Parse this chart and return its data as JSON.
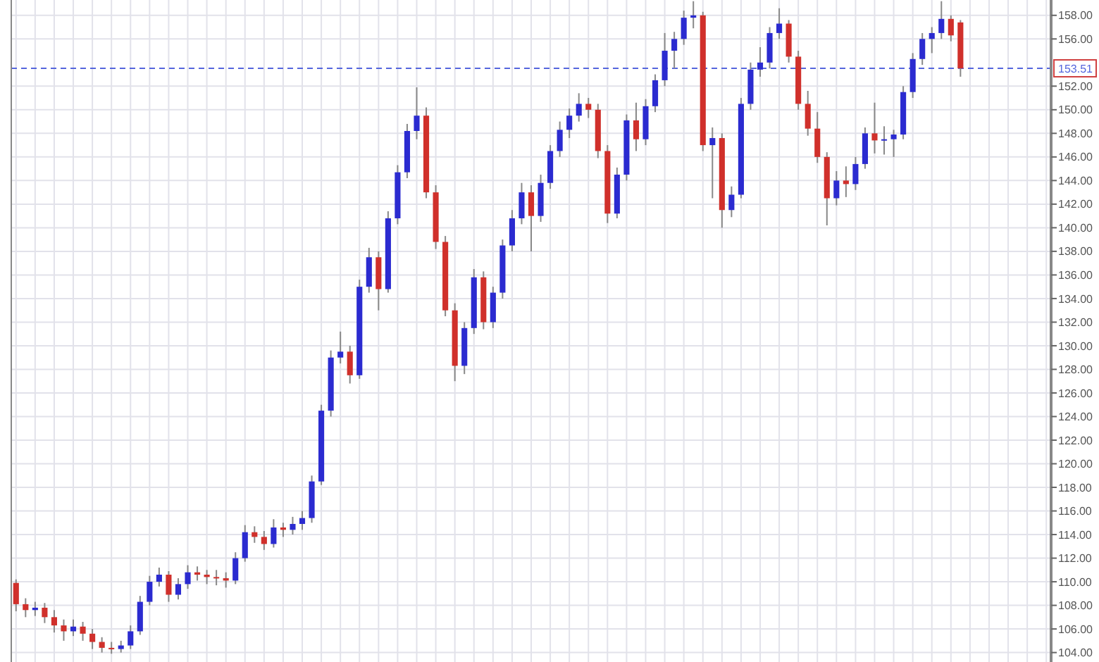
{
  "chart_data": {
    "type": "candlestick",
    "categories": [
      null,
      null,
      null,
      null,
      null,
      null,
      null,
      null,
      null,
      null,
      null,
      null,
      null,
      null,
      null,
      null,
      null,
      null,
      null,
      null,
      null,
      null,
      null,
      null,
      null,
      null,
      null,
      null,
      null,
      null,
      null,
      null,
      null,
      null,
      null,
      null,
      null,
      null,
      null,
      null,
      null,
      null,
      null,
      null,
      null,
      null,
      null,
      null,
      null,
      null,
      null,
      null,
      null,
      null,
      null,
      null,
      null,
      null,
      null,
      null,
      null,
      null,
      null,
      null,
      null,
      null,
      null,
      null,
      null,
      null,
      null,
      null,
      null,
      null,
      null,
      null,
      null,
      null,
      null,
      null,
      null,
      null,
      null,
      null,
      null,
      null,
      null,
      null,
      null,
      null,
      null,
      null,
      null,
      null,
      null,
      null,
      null,
      null,
      null,
      null,
      null,
      null,
      null,
      null,
      null,
      null,
      null,
      null,
      null
    ],
    "ohlc": [
      [
        109.9,
        110.2,
        107.5,
        108.1
      ],
      [
        108.1,
        108.6,
        107.0,
        107.6
      ],
      [
        107.6,
        108.3,
        107.1,
        107.8
      ],
      [
        107.8,
        108.2,
        106.5,
        107.0
      ],
      [
        107.0,
        107.6,
        105.7,
        106.3
      ],
      [
        106.3,
        106.8,
        105.0,
        105.8
      ],
      [
        105.8,
        106.8,
        105.4,
        106.2
      ],
      [
        106.2,
        106.6,
        105.0,
        105.6
      ],
      [
        105.6,
        106.0,
        104.3,
        104.9
      ],
      [
        104.9,
        105.3,
        104.0,
        104.4
      ],
      [
        104.4,
        104.9,
        103.9,
        104.3
      ],
      [
        104.3,
        105.0,
        104.0,
        104.6
      ],
      [
        104.6,
        106.3,
        104.3,
        105.8
      ],
      [
        105.8,
        108.8,
        105.5,
        108.3
      ],
      [
        108.3,
        110.5,
        108.0,
        110.0
      ],
      [
        110.0,
        111.2,
        109.6,
        110.6
      ],
      [
        110.6,
        110.9,
        108.3,
        108.9
      ],
      [
        108.9,
        110.3,
        108.5,
        109.8
      ],
      [
        109.8,
        111.4,
        109.4,
        110.8
      ],
      [
        110.8,
        111.3,
        110.1,
        110.6
      ],
      [
        110.6,
        111.0,
        109.8,
        110.4
      ],
      [
        110.4,
        111.0,
        109.7,
        110.3
      ],
      [
        110.3,
        110.8,
        109.5,
        110.1
      ],
      [
        110.1,
        112.5,
        109.8,
        112.0
      ],
      [
        112.0,
        114.8,
        111.7,
        114.2
      ],
      [
        114.2,
        114.7,
        113.3,
        113.8
      ],
      [
        113.8,
        114.3,
        112.7,
        113.2
      ],
      [
        113.2,
        115.3,
        112.9,
        114.6
      ],
      [
        114.6,
        115.0,
        113.8,
        114.4
      ],
      [
        114.4,
        115.5,
        114.0,
        114.9
      ],
      [
        114.9,
        116.0,
        114.4,
        115.4
      ],
      [
        115.4,
        119.0,
        115.0,
        118.5
      ],
      [
        118.5,
        125.0,
        118.2,
        124.5
      ],
      [
        124.5,
        129.6,
        124.0,
        129.0
      ],
      [
        129.0,
        131.2,
        128.5,
        129.5
      ],
      [
        129.5,
        130.0,
        126.8,
        127.5
      ],
      [
        127.5,
        135.6,
        127.2,
        135.0
      ],
      [
        135.0,
        138.3,
        134.5,
        137.5
      ],
      [
        137.5,
        138.0,
        133.0,
        134.8
      ],
      [
        134.8,
        141.4,
        134.5,
        140.8
      ],
      [
        140.8,
        145.3,
        140.3,
        144.7
      ],
      [
        144.7,
        148.8,
        144.2,
        148.2
      ],
      [
        148.2,
        151.9,
        147.5,
        149.5
      ],
      [
        149.5,
        150.2,
        142.5,
        143.0
      ],
      [
        143.0,
        143.6,
        138.2,
        138.8
      ],
      [
        138.8,
        139.3,
        132.5,
        133.0
      ],
      [
        133.0,
        133.6,
        127.0,
        128.3
      ],
      [
        128.3,
        132.0,
        127.6,
        131.5
      ],
      [
        131.5,
        136.5,
        131.0,
        135.8
      ],
      [
        135.8,
        136.3,
        131.4,
        132.0
      ],
      [
        132.0,
        135.0,
        131.5,
        134.5
      ],
      [
        134.5,
        139.0,
        134.0,
        138.5
      ],
      [
        138.5,
        141.5,
        138.0,
        140.8
      ],
      [
        140.8,
        143.8,
        140.3,
        143.0
      ],
      [
        143.0,
        143.6,
        138.0,
        141.0
      ],
      [
        141.0,
        144.5,
        140.5,
        143.8
      ],
      [
        143.8,
        147.0,
        143.3,
        146.5
      ],
      [
        146.5,
        149.0,
        146.0,
        148.3
      ],
      [
        148.3,
        150.1,
        147.6,
        149.5
      ],
      [
        149.5,
        151.4,
        149.0,
        150.5
      ],
      [
        150.5,
        151.0,
        149.3,
        150.0
      ],
      [
        150.0,
        150.5,
        145.9,
        146.5
      ],
      [
        146.5,
        147.0,
        140.4,
        141.2
      ],
      [
        141.2,
        145.1,
        140.8,
        144.5
      ],
      [
        144.5,
        149.6,
        144.0,
        149.1
      ],
      [
        149.1,
        150.6,
        146.5,
        147.5
      ],
      [
        147.5,
        150.9,
        147.0,
        150.3
      ],
      [
        150.3,
        153.0,
        149.8,
        152.5
      ],
      [
        152.5,
        156.5,
        152.0,
        155.0
      ],
      [
        155.0,
        156.6,
        153.5,
        156.0
      ],
      [
        156.0,
        158.4,
        155.5,
        157.8
      ],
      [
        157.8,
        159.2,
        156.9,
        158.0
      ],
      [
        158.0,
        158.3,
        146.5,
        147.0
      ],
      [
        147.0,
        148.5,
        142.5,
        147.6
      ],
      [
        147.6,
        148.0,
        140.0,
        141.5
      ],
      [
        141.5,
        143.5,
        140.9,
        142.8
      ],
      [
        142.8,
        151.0,
        142.5,
        150.5
      ],
      [
        150.5,
        154.0,
        150.0,
        153.4
      ],
      [
        153.4,
        155.3,
        152.8,
        154.0
      ],
      [
        154.0,
        157.0,
        153.5,
        156.5
      ],
      [
        156.5,
        158.6,
        156.0,
        157.3
      ],
      [
        157.3,
        157.6,
        154.0,
        154.5
      ],
      [
        154.5,
        155.0,
        150.0,
        150.5
      ],
      [
        150.5,
        151.6,
        147.8,
        148.4
      ],
      [
        148.4,
        149.8,
        145.5,
        146.0
      ],
      [
        146.0,
        146.4,
        140.2,
        142.5
      ],
      [
        142.5,
        144.8,
        141.9,
        144.0
      ],
      [
        144.0,
        145.2,
        142.6,
        143.7
      ],
      [
        143.7,
        146.0,
        143.2,
        145.4
      ],
      [
        145.4,
        148.5,
        145.0,
        148.0
      ],
      [
        148.0,
        150.6,
        146.3,
        147.4
      ],
      [
        147.4,
        148.6,
        146.2,
        147.5
      ],
      [
        147.5,
        148.3,
        146.0,
        147.9
      ],
      [
        147.9,
        152.0,
        147.5,
        151.5
      ],
      [
        151.5,
        154.8,
        151.0,
        154.3
      ],
      [
        154.3,
        156.5,
        153.8,
        156.0
      ],
      [
        156.0,
        157.0,
        154.8,
        156.5
      ],
      [
        156.5,
        159.2,
        156.0,
        157.7
      ],
      [
        157.7,
        158.0,
        155.8,
        156.3
      ],
      [
        157.4,
        157.6,
        152.8,
        153.5
      ],
      null,
      null,
      null,
      null,
      null,
      null,
      null,
      null,
      null
    ],
    "colors": [
      "#d0302b",
      "#d0302b",
      "#2b2bd0",
      "#d0302b",
      "#d0302b",
      "#d0302b",
      "#2b2bd0",
      "#d0302b",
      "#d0302b",
      "#d0302b",
      "#d0302b",
      "#2b2bd0",
      "#2b2bd0",
      "#2b2bd0",
      "#2b2bd0",
      "#2b2bd0",
      "#d0302b",
      "#2b2bd0",
      "#2b2bd0",
      "#d0302b",
      "#d0302b",
      "#d0302b",
      "#d0302b",
      "#2b2bd0",
      "#2b2bd0",
      "#d0302b",
      "#d0302b",
      "#2b2bd0",
      "#d0302b",
      "#2b2bd0",
      "#2b2bd0",
      "#2b2bd0",
      "#2b2bd0",
      "#2b2bd0",
      "#2b2bd0",
      "#d0302b",
      "#2b2bd0",
      "#2b2bd0",
      "#d0302b",
      "#2b2bd0",
      "#2b2bd0",
      "#2b2bd0",
      "#2b2bd0",
      "#d0302b",
      "#d0302b",
      "#d0302b",
      "#d0302b",
      "#2b2bd0",
      "#2b2bd0",
      "#d0302b",
      "#2b2bd0",
      "#2b2bd0",
      "#2b2bd0",
      "#2b2bd0",
      "#d0302b",
      "#2b2bd0",
      "#2b2bd0",
      "#2b2bd0",
      "#2b2bd0",
      "#2b2bd0",
      "#d0302b",
      "#d0302b",
      "#d0302b",
      "#2b2bd0",
      "#2b2bd0",
      "#d0302b",
      "#2b2bd0",
      "#2b2bd0",
      "#2b2bd0",
      "#2b2bd0",
      "#2b2bd0",
      "#2b2bd0",
      "#d0302b",
      "#2b2bd0",
      "#d0302b",
      "#2b2bd0",
      "#2b2bd0",
      "#2b2bd0",
      "#2b2bd0",
      "#2b2bd0",
      "#2b2bd0",
      "#d0302b",
      "#d0302b",
      "#d0302b",
      "#d0302b",
      "#d0302b",
      "#2b2bd0",
      "#d0302b",
      "#2b2bd0",
      "#2b2bd0",
      "#d0302b",
      "#2b2bd0",
      "#2b2bd0",
      "#2b2bd0",
      "#2b2bd0",
      "#2b2bd0",
      "#2b2bd0",
      "#2b2bd0",
      "#d0302b",
      "#d0302b",
      null,
      null,
      null,
      null,
      null,
      null,
      null,
      null,
      null
    ],
    "ylim": [
      103.2,
      159.3
    ],
    "yticks": [
      {
        "value": 104,
        "label": "104.00"
      },
      {
        "value": 106,
        "label": "106.00"
      },
      {
        "value": 108,
        "label": "108.00"
      },
      {
        "value": 110,
        "label": "110.00"
      },
      {
        "value": 112,
        "label": "112.00"
      },
      {
        "value": 114,
        "label": "114.00"
      },
      {
        "value": 116,
        "label": "116.00"
      },
      {
        "value": 118,
        "label": "118.00"
      },
      {
        "value": 120,
        "label": "120.00"
      },
      {
        "value": 122,
        "label": "122.00"
      },
      {
        "value": 124,
        "label": "124.00"
      },
      {
        "value": 126,
        "label": "126.00"
      },
      {
        "value": 128,
        "label": "128.00"
      },
      {
        "value": 130,
        "label": "130.00"
      },
      {
        "value": 132,
        "label": "132.00"
      },
      {
        "value": 134,
        "label": "134.00"
      },
      {
        "value": 136,
        "label": "136.00"
      },
      {
        "value": 138,
        "label": "138.00"
      },
      {
        "value": 140,
        "label": "140.00"
      },
      {
        "value": 142,
        "label": "142.00"
      },
      {
        "value": 144,
        "label": "144.00"
      },
      {
        "value": 146,
        "label": "146.00"
      },
      {
        "value": 148,
        "label": "148.00"
      },
      {
        "value": 150,
        "label": "150.00"
      },
      {
        "value": 152,
        "label": "152.00"
      },
      {
        "value": 156,
        "label": "156.00"
      },
      {
        "value": 158,
        "label": "158.00"
      }
    ],
    "ref_lines": [
      {
        "axis": "y",
        "value": 153.51,
        "label": "153.51",
        "color": "#5566dd",
        "line_style": "dashed"
      }
    ],
    "grid": true,
    "tick_labels": "y"
  }
}
